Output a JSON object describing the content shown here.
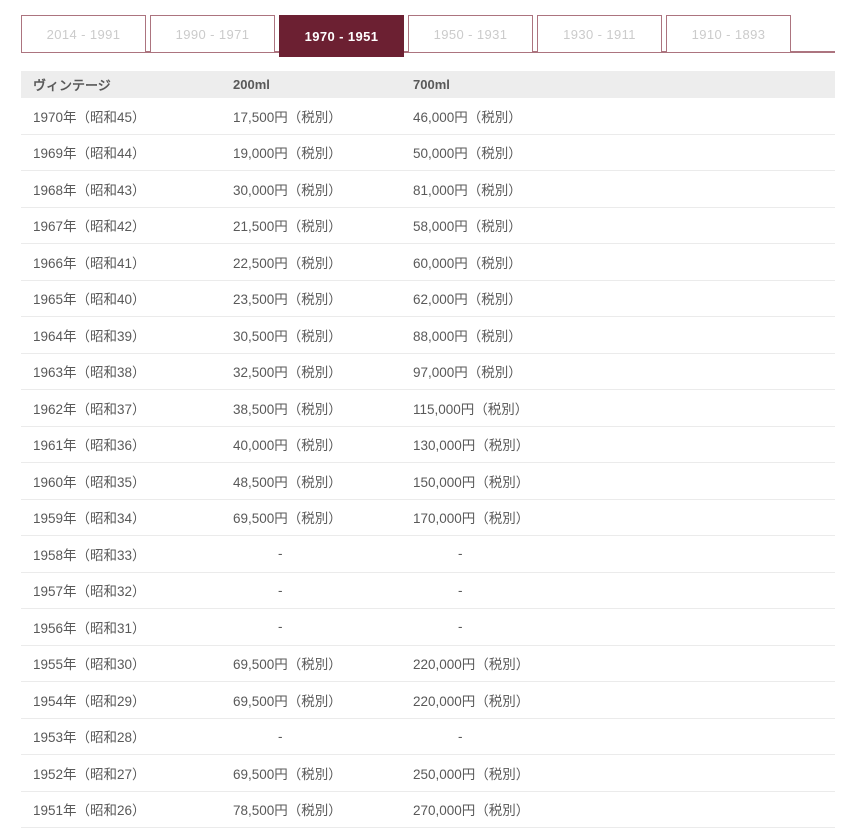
{
  "colors": {
    "accent_dark": "#6c2032",
    "border_rose": "#ac747f",
    "inactive_text": "#cbcbcb",
    "header_bg": "#ededed",
    "text_color": "#595959",
    "row_line": "#ebebeb"
  },
  "tabs": [
    {
      "label": "2014 - 1991",
      "active": false
    },
    {
      "label": "1990 - 1971",
      "active": false
    },
    {
      "label": "1970 - 1951",
      "active": true
    },
    {
      "label": "1950 - 1931",
      "active": false
    },
    {
      "label": "1930 - 1911",
      "active": false
    },
    {
      "label": "1910 - 1893",
      "active": false
    }
  ],
  "table": {
    "headers": [
      "ヴィンテージ",
      "200ml",
      "700ml"
    ],
    "rows": [
      [
        "1970年（昭和45）",
        "17,500円（税別）",
        "46,000円（税別）"
      ],
      [
        "1969年（昭和44）",
        "19,000円（税別）",
        "50,000円（税別）"
      ],
      [
        "1968年（昭和43）",
        "30,000円（税別）",
        "81,000円（税別）"
      ],
      [
        "1967年（昭和42）",
        "21,500円（税別）",
        "58,000円（税別）"
      ],
      [
        "1966年（昭和41）",
        "22,500円（税別）",
        "60,000円（税別）"
      ],
      [
        "1965年（昭和40）",
        "23,500円（税別）",
        "62,000円（税別）"
      ],
      [
        "1964年（昭和39）",
        "30,500円（税別）",
        "88,000円（税別）"
      ],
      [
        "1963年（昭和38）",
        "32,500円（税別）",
        "97,000円（税別）"
      ],
      [
        "1962年（昭和37）",
        "38,500円（税別）",
        "115,000円（税別）"
      ],
      [
        "1961年（昭和36）",
        "40,000円（税別）",
        "130,000円（税別）"
      ],
      [
        "1960年（昭和35）",
        "48,500円（税別）",
        "150,000円（税別）"
      ],
      [
        "1959年（昭和34）",
        "69,500円（税別）",
        "170,000円（税別）"
      ],
      [
        "1958年（昭和33）",
        "-",
        "-"
      ],
      [
        "1957年（昭和32）",
        "-",
        "-"
      ],
      [
        "1956年（昭和31）",
        "-",
        "-"
      ],
      [
        "1955年（昭和30）",
        "69,500円（税別）",
        "220,000円（税別）"
      ],
      [
        "1954年（昭和29）",
        "69,500円（税別）",
        "220,000円（税別）"
      ],
      [
        "1953年（昭和28）",
        "-",
        "-"
      ],
      [
        "1952年（昭和27）",
        "69,500円（税別）",
        "250,000円（税別）"
      ],
      [
        "1951年（昭和26）",
        "78,500円（税別）",
        "270,000円（税別）"
      ]
    ]
  }
}
